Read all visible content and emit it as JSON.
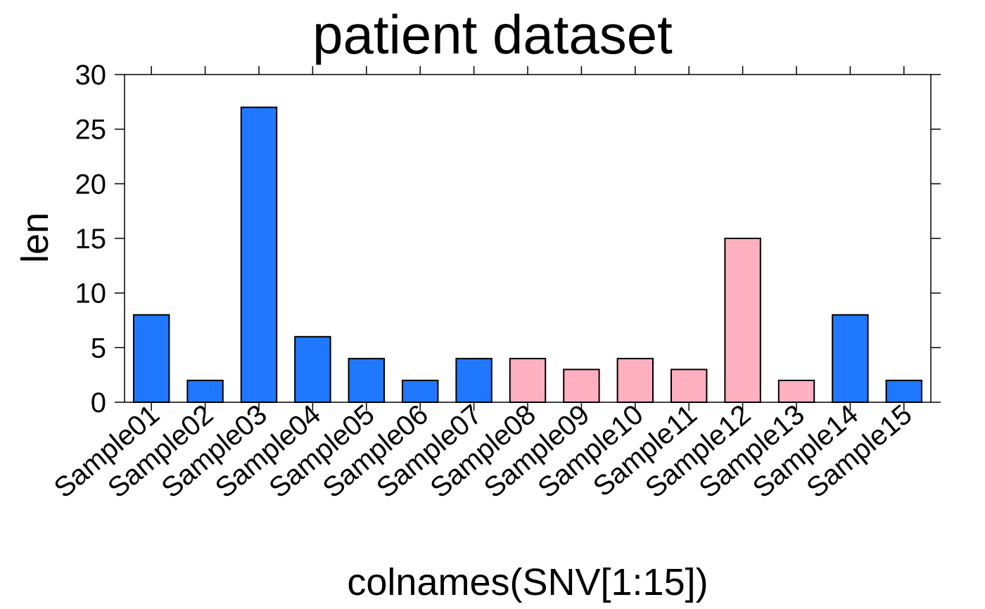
{
  "chart_data": {
    "type": "bar",
    "title": "patient dataset",
    "xlabel": "colnames(SNV[1:15])",
    "ylabel": "len",
    "ylim": [
      0,
      30
    ],
    "yticks": [
      0,
      5,
      10,
      15,
      20,
      25,
      30
    ],
    "grid": false,
    "legend": "none",
    "categories": [
      "Sample01",
      "Sample02",
      "Sample03",
      "Sample04",
      "Sample05",
      "Sample06",
      "Sample07",
      "Sample08",
      "Sample09",
      "Sample10",
      "Sample11",
      "Sample12",
      "Sample13",
      "Sample14",
      "Sample15"
    ],
    "values": [
      8,
      2,
      27,
      6,
      4,
      2,
      4,
      4,
      3,
      4,
      3,
      15,
      2,
      8,
      2
    ],
    "bar_colors": [
      "#1f78ff",
      "#1f78ff",
      "#1f78ff",
      "#1f78ff",
      "#1f78ff",
      "#1f78ff",
      "#1f78ff",
      "#ffb0c0",
      "#ffb0c0",
      "#ffb0c0",
      "#ffb0c0",
      "#ffb0c0",
      "#ffb0c0",
      "#1f78ff",
      "#1f78ff"
    ]
  }
}
